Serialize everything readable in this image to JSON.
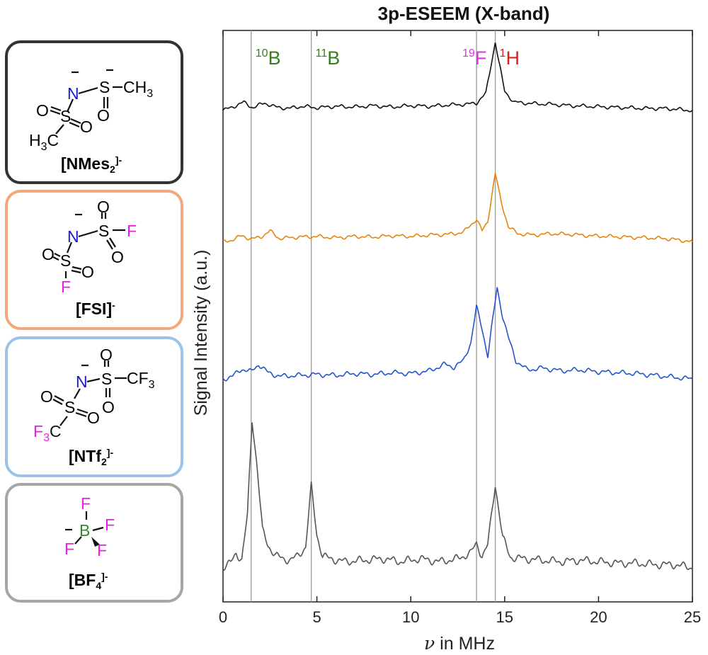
{
  "boxes": [
    {
      "label_main": "[NMes",
      "label_sub": "2",
      "label_sup": "]-",
      "border": "#333333",
      "atoms": {
        "n": "N",
        "s": "S",
        "o": "O",
        "ch3": "CH",
        "ch3_sub": "3",
        "h3c_pre": "H",
        "h3c_sub": "3",
        "h3c_post": "C"
      }
    },
    {
      "label_main": "[FSI]",
      "label_sub": "",
      "label_sup": "-",
      "border": "#f2a87a",
      "atoms": {
        "n": "N",
        "s": "S",
        "o": "O",
        "f": "F"
      }
    },
    {
      "label_main": "[NTf",
      "label_sub": "2",
      "label_sup": "]-",
      "border": "#9cc3e6",
      "atoms": {
        "n": "N",
        "s": "S",
        "o": "O",
        "cf3": "CF",
        "cf3_sub": "3",
        "f3c_pre": "F",
        "f3c_sub": "3",
        "f3c_post": "C"
      }
    },
    {
      "label_main": "[BF",
      "label_sub": "4",
      "label_sup": "]-",
      "border": "#a6a6a6",
      "atoms": {
        "b": "B",
        "f": "F"
      }
    }
  ],
  "colors": {
    "nitrogen": "#1a1acc",
    "fluorine": "#e81fe0",
    "boron": "#2e8b2e",
    "hydrogen_label": "#e02020",
    "boron_label": "#3a7d20",
    "fluorine_label": "#e62ee6"
  },
  "chart_data": {
    "type": "line",
    "title": "3p-ESEEM (X-band)",
    "xlabel_symbol": "ν",
    "xlabel_rest": " in MHz",
    "ylabel": "Signal Intensity (a.u.)",
    "xlim": [
      0,
      25
    ],
    "xticks": [
      0,
      5,
      10,
      15,
      20,
      25
    ],
    "yticks": "none",
    "grid": false,
    "legend": "none",
    "series": [
      {
        "color": "#111111",
        "offset": 0.86,
        "scale": 0.12,
        "x": [
          0,
          0.5,
          1.1,
          1.6,
          2.2,
          2.8,
          3.5,
          4.2,
          5.0,
          6.0,
          7.0,
          8.0,
          9.0,
          10.0,
          11.0,
          12.0,
          13.0,
          13.5,
          14.0,
          14.3,
          14.5,
          14.7,
          15.0,
          15.5,
          16.5,
          17.5,
          18.5,
          19.5,
          20.5,
          21.5,
          22.5,
          23.5,
          24.5,
          25.0
        ],
        "y": [
          0.0,
          0.05,
          0.12,
          0.04,
          0.11,
          0.05,
          0.03,
          0.06,
          0.04,
          0.06,
          0.05,
          0.07,
          0.05,
          0.07,
          0.06,
          0.08,
          0.09,
          0.11,
          0.25,
          0.7,
          1.0,
          0.7,
          0.28,
          0.12,
          0.1,
          0.09,
          0.07,
          0.06,
          0.05,
          0.04,
          0.03,
          0.03,
          0.01,
          0.0
        ]
      },
      {
        "color": "#e8830c",
        "offset": 0.63,
        "scale": 0.12,
        "x": [
          0,
          0.5,
          1.0,
          1.5,
          2.0,
          2.5,
          3.0,
          4.0,
          5.0,
          6.0,
          7.0,
          8.0,
          9.0,
          10.0,
          11.0,
          12.0,
          12.8,
          13.2,
          13.5,
          13.8,
          14.1,
          14.5,
          14.8,
          15.2,
          15.7,
          16.5,
          17.5,
          18.5,
          19.5,
          20.5,
          21.5,
          22.5,
          23.5,
          24.5,
          25.0
        ],
        "y": [
          0.0,
          0.03,
          0.09,
          0.04,
          0.07,
          0.16,
          0.05,
          0.07,
          0.08,
          0.06,
          0.08,
          0.07,
          0.09,
          0.08,
          0.1,
          0.11,
          0.14,
          0.25,
          0.33,
          0.16,
          0.3,
          1.0,
          0.6,
          0.22,
          0.12,
          0.1,
          0.12,
          0.11,
          0.09,
          0.08,
          0.07,
          0.06,
          0.05,
          0.02,
          0.0
        ]
      },
      {
        "color": "#2255cc",
        "offset": 0.39,
        "scale": 0.16,
        "x": [
          0,
          0.5,
          1.0,
          1.5,
          1.9,
          2.4,
          3.0,
          4.0,
          5.0,
          6.0,
          7.0,
          8.0,
          9.0,
          10.0,
          11.0,
          11.8,
          12.3,
          12.8,
          13.2,
          13.5,
          13.8,
          14.1,
          14.3,
          14.6,
          14.9,
          15.2,
          15.6,
          16.2,
          17.0,
          18.0,
          19.0,
          20.0,
          21.0,
          22.0,
          23.0,
          24.0,
          25.0
        ],
        "y": [
          0.0,
          0.03,
          0.11,
          0.08,
          0.16,
          0.07,
          0.03,
          0.04,
          0.05,
          0.04,
          0.06,
          0.05,
          0.07,
          0.06,
          0.09,
          0.16,
          0.13,
          0.2,
          0.4,
          0.79,
          0.55,
          0.25,
          0.55,
          1.0,
          0.68,
          0.45,
          0.2,
          0.1,
          0.12,
          0.09,
          0.1,
          0.08,
          0.07,
          0.06,
          0.04,
          0.02,
          0.0
        ]
      },
      {
        "color": "#555555",
        "offset": 0.06,
        "scale": 0.26,
        "x": [
          0,
          0.4,
          0.7,
          1.0,
          1.3,
          1.55,
          1.8,
          2.1,
          2.4,
          2.8,
          3.2,
          3.6,
          4.0,
          4.4,
          4.7,
          5.0,
          5.3,
          5.7,
          6.5,
          7.5,
          8.5,
          9.5,
          10.5,
          11.5,
          12.5,
          13.2,
          13.5,
          13.8,
          14.1,
          14.5,
          14.9,
          15.3,
          16.0,
          17.0,
          18.0,
          19.0,
          20.0,
          21.0,
          22.0,
          23.0,
          24.0,
          25.0
        ],
        "y": [
          0.0,
          0.03,
          0.1,
          0.05,
          0.35,
          1.0,
          0.7,
          0.25,
          0.15,
          0.08,
          0.06,
          0.05,
          0.08,
          0.14,
          0.55,
          0.22,
          0.08,
          0.06,
          0.04,
          0.05,
          0.06,
          0.04,
          0.06,
          0.04,
          0.06,
          0.1,
          0.16,
          0.08,
          0.15,
          0.56,
          0.2,
          0.07,
          0.06,
          0.05,
          0.04,
          0.05,
          0.04,
          0.03,
          0.03,
          0.02,
          0.02,
          0.0
        ]
      }
    ],
    "reference_lines": [
      {
        "x": 1.5,
        "iso": "10",
        "el": "B",
        "color": "#3a7d20"
      },
      {
        "x": 4.7,
        "iso": "11",
        "el": "B",
        "color": "#3a7d20"
      },
      {
        "x": 13.5,
        "iso": "19",
        "el": "F",
        "color": "#e62ee6"
      },
      {
        "x": 14.5,
        "iso": "1",
        "el": "H",
        "color": "#e02020"
      }
    ]
  }
}
